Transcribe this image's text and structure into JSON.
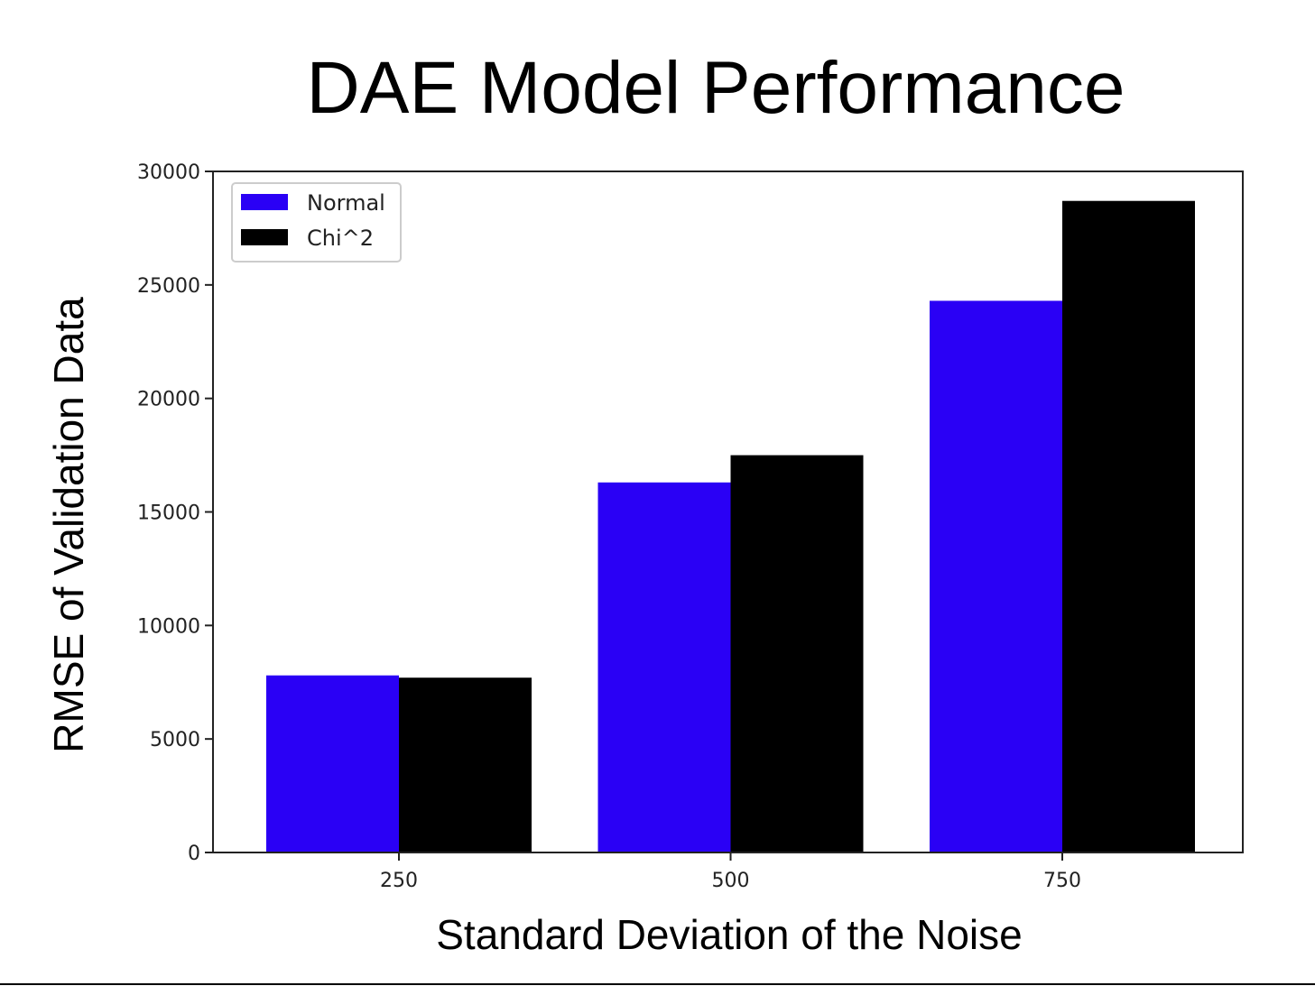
{
  "chart_data": {
    "type": "bar",
    "title": "DAE Model Performance",
    "xlabel": "Standard Deviation of the Noise",
    "ylabel": "RMSE of Validation Data",
    "categories": [
      "250",
      "500",
      "750"
    ],
    "series": [
      {
        "name": "Normal",
        "color": "#2a00f5",
        "values": [
          7800,
          16300,
          24300
        ]
      },
      {
        "name": "Chi^2",
        "color": "#000000",
        "values": [
          7700,
          17500,
          28700
        ]
      }
    ],
    "ylim": [
      0,
      30000
    ],
    "yticks": [
      "0",
      "5000",
      "10000",
      "15000",
      "20000",
      "25000",
      "30000"
    ],
    "ytick_values": [
      0,
      5000,
      10000,
      15000,
      20000,
      25000,
      30000
    ],
    "grid": false,
    "legend_position": "top-left"
  }
}
